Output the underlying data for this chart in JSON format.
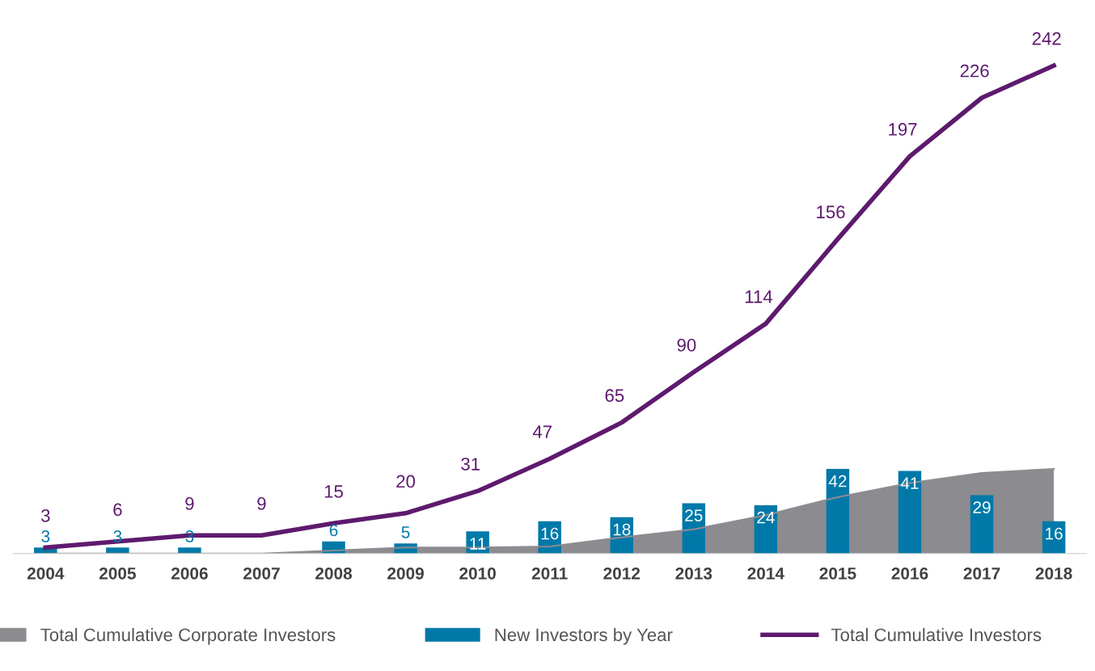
{
  "chart_data": {
    "type": "bar",
    "categories": [
      "2004",
      "2005",
      "2006",
      "2007",
      "2008",
      "2009",
      "2010",
      "2011",
      "2012",
      "2013",
      "2014",
      "2015",
      "2016",
      "2017",
      "2018"
    ],
    "series": [
      {
        "name": "Total Cumulative Corporate Investors",
        "type": "area",
        "color": "#8c8c90",
        "values": [
          0,
          0,
          0,
          0,
          1.5,
          3,
          3,
          3.5,
          8,
          12,
          19,
          28,
          35,
          40,
          42
        ]
      },
      {
        "name": "New Investors by Year",
        "color": "#0079a9",
        "values": [
          3,
          3,
          3,
          0,
          6,
          5,
          11,
          16,
          18,
          25,
          24,
          42,
          41,
          29,
          16
        ],
        "value_labels": [
          "3",
          "3",
          "3",
          null,
          "6",
          "5",
          "11",
          "16",
          "18",
          "25",
          "24",
          "42",
          "41",
          "29",
          "16"
        ]
      },
      {
        "name": "Total Cumulative Investors",
        "type": "line",
        "color": "#5e1a6e",
        "values": [
          3,
          6,
          9,
          9,
          15,
          20,
          31,
          47,
          65,
          90,
          114,
          156,
          197,
          226,
          242
        ],
        "value_labels": [
          "3",
          "6",
          "9",
          "9",
          "15",
          "20",
          "31",
          "47",
          "65",
          "90",
          "114",
          "156",
          "197",
          "226",
          "242"
        ]
      }
    ],
    "legend": "bottom",
    "grid": false,
    "tick_labels": "x",
    "marker": "none",
    "line_style": "solid"
  }
}
